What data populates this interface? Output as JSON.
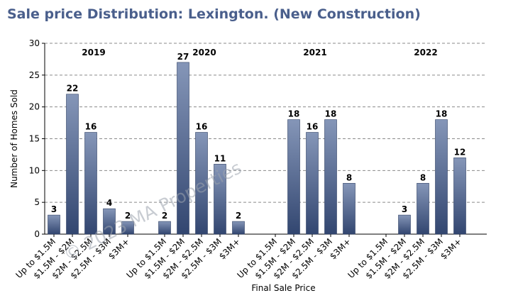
{
  "title": "Sale price Distribution: Lexington. (New Construction)",
  "watermark": "© 2023 MA Properties",
  "chart_data": {
    "type": "bar",
    "xlabel": "Final Sale Price",
    "ylabel": "Number of Homes Sold",
    "ylim": [
      0,
      30
    ],
    "yticks": [
      0,
      5,
      10,
      15,
      20,
      25,
      30
    ],
    "grid": true,
    "bar_color": "#4a5f8c",
    "groups": [
      {
        "label": "2019",
        "categories": [
          "Up to $1.5M",
          "$1.5M - $2M",
          "$2M - $2.5M",
          "$2.5M - $3M",
          "$3M+"
        ],
        "values": [
          3,
          22,
          16,
          4,
          2
        ]
      },
      {
        "label": "2020",
        "categories": [
          "Up to $1.5M",
          "$1.5M - $2M",
          "$2M - $2.5M",
          "$2.5M - $3M",
          "$3M+"
        ],
        "values": [
          2,
          27,
          16,
          11,
          2
        ]
      },
      {
        "label": "2021",
        "categories": [
          "Up to $1.5M",
          "$1.5M - $2M",
          "$2M - $2.5M",
          "$2.5M - $3M",
          "$3M+"
        ],
        "values": [
          null,
          18,
          16,
          18,
          8
        ]
      },
      {
        "label": "2022",
        "categories": [
          "Up to $1.5M",
          "$1.5M - $2M",
          "$2M - $2.5M",
          "$2.5M - $3M",
          "$3M+"
        ],
        "values": [
          null,
          3,
          8,
          18,
          12
        ]
      }
    ]
  }
}
